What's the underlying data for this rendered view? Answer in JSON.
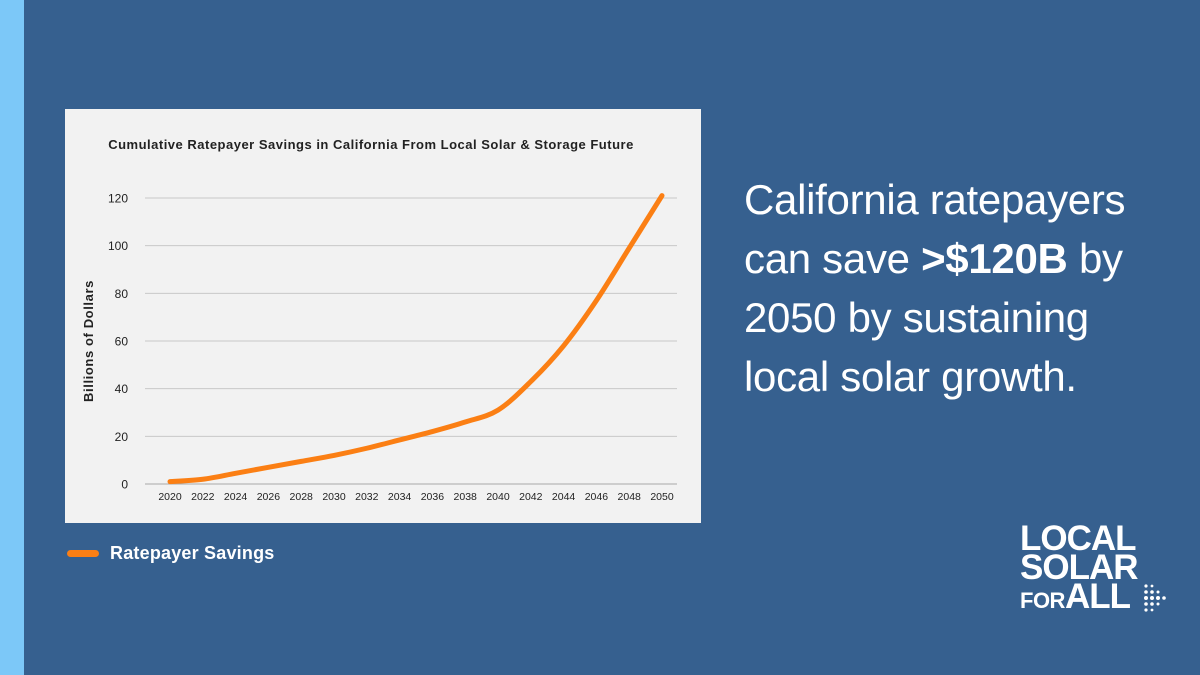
{
  "chart_data": {
    "type": "line",
    "title": "Cumulative Ratepayer Savings in California From Local Solar & Storage Future",
    "xlabel": "",
    "ylabel": "Billions of Dollars",
    "x": [
      2020,
      2022,
      2024,
      2026,
      2028,
      2030,
      2032,
      2034,
      2036,
      2038,
      2040,
      2042,
      2044,
      2046,
      2048,
      2050
    ],
    "x_tick_labels": [
      "2020",
      "2022",
      "2024",
      "2026",
      "2028",
      "2030",
      "2032",
      "2034",
      "2036",
      "2038",
      "2040",
      "2042",
      "2044",
      "2046",
      "2048",
      "2050"
    ],
    "ylim": [
      0,
      120
    ],
    "y_ticks": [
      0,
      20,
      40,
      60,
      80,
      100,
      120
    ],
    "y_tick_labels": [
      "0",
      "20",
      "40",
      "60",
      "80",
      "100",
      "120"
    ],
    "grid": true,
    "legend_position": "bottom-left",
    "series": [
      {
        "name": "Ratepayer Savings",
        "color": "#fb7f14",
        "values": [
          1,
          2,
          4.5,
          7,
          9.5,
          12,
          15,
          18.5,
          22,
          26,
          31,
          43,
          58,
          77,
          99,
          121
        ]
      }
    ]
  },
  "headline": {
    "part1": "California ratepayers can save ",
    "highlight": ">$120B",
    "part2": " by 2050 by sustaining local solar growth."
  },
  "logo": {
    "line1": "LOCAL",
    "line2": "SOLAR",
    "line3a": "FOR",
    "line3b": "ALL"
  },
  "colors": {
    "background": "#36608f",
    "accent_stripe": "#7cc8f8",
    "chart_background": "#f2f2f2",
    "series": "#fb7f14"
  }
}
